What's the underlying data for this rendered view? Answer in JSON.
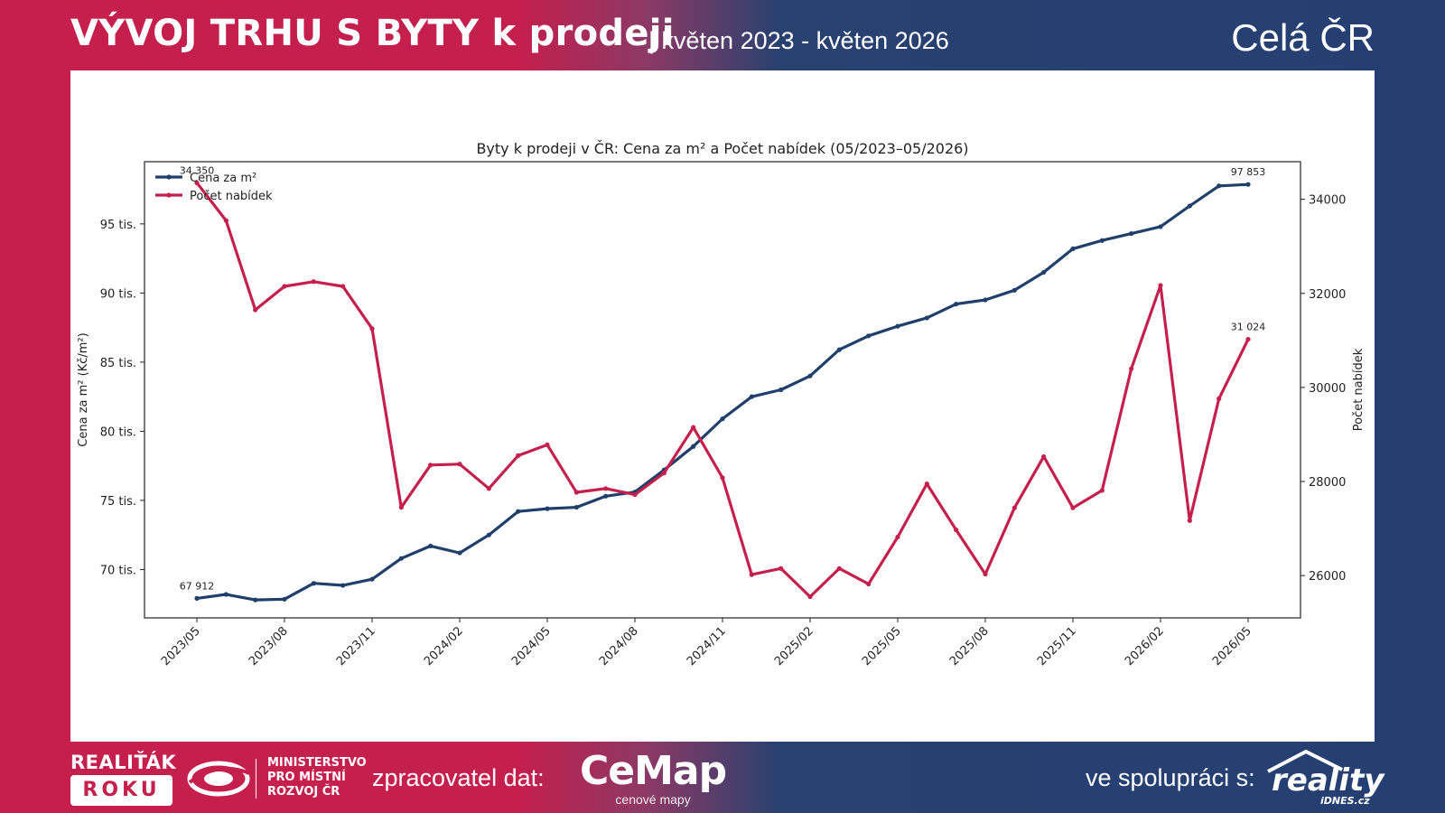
{
  "header": {
    "title": "VÝVOJ TRHU S BYTY k prodeji",
    "subtitle": "| květen 2023 - květen 2026",
    "region": "Celá ČR"
  },
  "footer": {
    "award_top": "REALIŤÁK",
    "award_bottom": "ROKU",
    "ministry_lines": [
      "MINISTERSTVO",
      "PRO MÍSTNÍ",
      "ROZVOJ ČR"
    ],
    "processor_label": "zpracovatel dat:",
    "processor_name": "CeMap",
    "processor_tagline": "cenové mapy",
    "partner_label": "ve spolupráci s:",
    "partner_name": "reality",
    "partner_sub": "iDNES.cz"
  },
  "colors": {
    "price": "#213f6b",
    "listings": "#c41f4d"
  },
  "chart_data": {
    "type": "line",
    "title": "Byty k prodeji v ČR: Cena za m² a Počet nabídek (05/2023–05/2026)",
    "x": [
      "2023/05",
      "2023/06",
      "2023/07",
      "2023/08",
      "2023/09",
      "2023/10",
      "2023/11",
      "2023/12",
      "2024/01",
      "2024/02",
      "2024/03",
      "2024/04",
      "2024/05",
      "2024/06",
      "2024/07",
      "2024/08",
      "2024/09",
      "2024/10",
      "2024/11",
      "2024/12",
      "2025/01",
      "2025/02",
      "2025/03",
      "2025/04",
      "2025/05",
      "2025/06",
      "2025/07",
      "2025/08",
      "2025/09",
      "2025/10",
      "2025/11",
      "2025/12",
      "2026/01",
      "2026/02",
      "2026/03",
      "2026/04",
      "2026/05"
    ],
    "xticks": [
      "2023/05",
      "2023/08",
      "2023/11",
      "2024/02",
      "2024/05",
      "2024/08",
      "2024/11",
      "2025/02",
      "2025/05",
      "2025/08",
      "2025/11",
      "2026/02",
      "2026/05"
    ],
    "left_axis": {
      "label": "Cena za m² (Kč/m²)",
      "ticks": [
        70000,
        75000,
        80000,
        85000,
        90000,
        95000
      ],
      "tick_labels": [
        "70 tis.",
        "75 tis.",
        "80 tis.",
        "85 tis.",
        "90 tis.",
        "95 tis."
      ],
      "range": [
        66500,
        99500
      ]
    },
    "right_axis": {
      "label": "Počet nabídek",
      "ticks": [
        26000,
        28000,
        30000,
        32000,
        34000
      ],
      "tick_labels": [
        "26000",
        "28000",
        "30000",
        "32000",
        "34000"
      ],
      "range": [
        25100,
        34800
      ]
    },
    "series": [
      {
        "name": "Cena za m²",
        "axis": "left",
        "values": [
          67912,
          68200,
          67800,
          67850,
          69000,
          68850,
          69300,
          70800,
          71700,
          71200,
          72500,
          74200,
          74400,
          74500,
          75300,
          75600,
          77200,
          78900,
          80900,
          82500,
          83000,
          84000,
          85900,
          86900,
          87600,
          88200,
          89200,
          89500,
          90200,
          91500,
          93200,
          93800,
          94300,
          94800,
          96300,
          97750,
          97853
        ]
      },
      {
        "name": "Počet nabídek",
        "axis": "right",
        "values": [
          34350,
          33550,
          31650,
          32150,
          32250,
          32150,
          31250,
          27450,
          28350,
          28370,
          27850,
          28550,
          28780,
          27770,
          27850,
          27720,
          28180,
          29150,
          28080,
          26020,
          26150,
          25550,
          26150,
          25820,
          26820,
          27950,
          26970,
          26030,
          27440,
          28530,
          27440,
          27810,
          30400,
          32170,
          27170,
          29760,
          31024
        ]
      }
    ],
    "annotations": [
      {
        "series": 0,
        "index": 0,
        "text": "67 912"
      },
      {
        "series": 0,
        "index": 36,
        "text": "97 853"
      },
      {
        "series": 1,
        "index": 0,
        "text": "34 350"
      },
      {
        "series": 1,
        "index": 36,
        "text": "31 024"
      }
    ],
    "legend": "top-left",
    "grid": false
  }
}
